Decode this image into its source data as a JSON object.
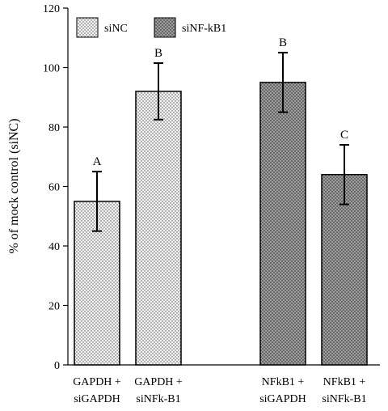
{
  "chart_data": {
    "type": "bar",
    "ylabel": "% of mock control (siNC)",
    "ylim": [
      0,
      120
    ],
    "yticks": [
      0,
      20,
      40,
      60,
      80,
      100,
      120
    ],
    "legend": {
      "placement": "top-left",
      "entries": [
        {
          "name": "siNC",
          "pattern": "light-dots"
        },
        {
          "name": "siNF-kB1",
          "pattern": "dark-dots"
        }
      ]
    },
    "bars": [
      {
        "label_line1": "GAPDH +",
        "label_line2": "siGAPDH",
        "value": 55,
        "error": 10,
        "sig": "A",
        "series": "siNC"
      },
      {
        "label_line1": "GAPDH +",
        "label_line2": "siNFk-B1",
        "value": 92,
        "error": 9.5,
        "sig": "B",
        "series": "siNC"
      },
      {
        "label_line1": "NFkB1 +",
        "label_line2": "siGAPDH",
        "value": 95,
        "error": 10,
        "sig": "B",
        "series": "siNF-kB1"
      },
      {
        "label_line1": "NFkB1 +",
        "label_line2": "siNFk-B1",
        "value": 64,
        "error": 10,
        "sig": "C",
        "series": "siNF-kB1"
      }
    ],
    "colors": {
      "light_fill": "#f2f2f2",
      "light_dot": "#555555",
      "dark_fill": "#6a6a6a",
      "dark_dot": "#e0e0e0"
    }
  }
}
